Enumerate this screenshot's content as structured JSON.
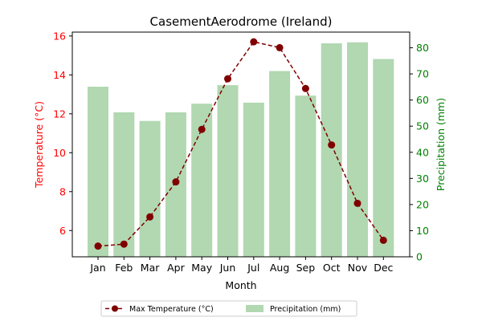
{
  "chart_data": {
    "type": "bar+line",
    "title": "CasementAerodrome (Ireland)",
    "xlabel": "Month",
    "ylabel_left": "Temperature (°C)",
    "ylabel_right": "Precipitation (mm)",
    "categories": [
      "Jan",
      "Feb",
      "Mar",
      "Apr",
      "May",
      "Jun",
      "Jul",
      "Aug",
      "Sep",
      "Oct",
      "Nov",
      "Dec"
    ],
    "y_left_lim": [
      4.65,
      16.2
    ],
    "y_right_lim": [
      0,
      86
    ],
    "y_left_ticks": [
      6,
      8,
      10,
      12,
      14,
      16
    ],
    "y_right_ticks": [
      0,
      10,
      20,
      30,
      40,
      50,
      60,
      70,
      80
    ],
    "series": [
      {
        "name": "Max Temperature (°C)",
        "type": "line",
        "axis": "left",
        "color": "#800000",
        "style": "dashed-with-circle-markers",
        "values": [
          5.2,
          5.3,
          6.7,
          8.5,
          11.2,
          13.8,
          15.7,
          15.4,
          13.3,
          10.4,
          7.4,
          5.5
        ]
      },
      {
        "name": "Precipitation (mm)",
        "type": "bar",
        "axis": "right",
        "color": "#b1d8b1",
        "values": [
          65.1,
          55.3,
          52.0,
          55.3,
          58.6,
          65.7,
          59.0,
          71.1,
          61.7,
          81.7,
          82.1,
          75.7
        ]
      }
    ],
    "legend_position": "bottom-center",
    "colors": {
      "left_axis": "#ff0000",
      "right_axis": "#008000"
    }
  }
}
